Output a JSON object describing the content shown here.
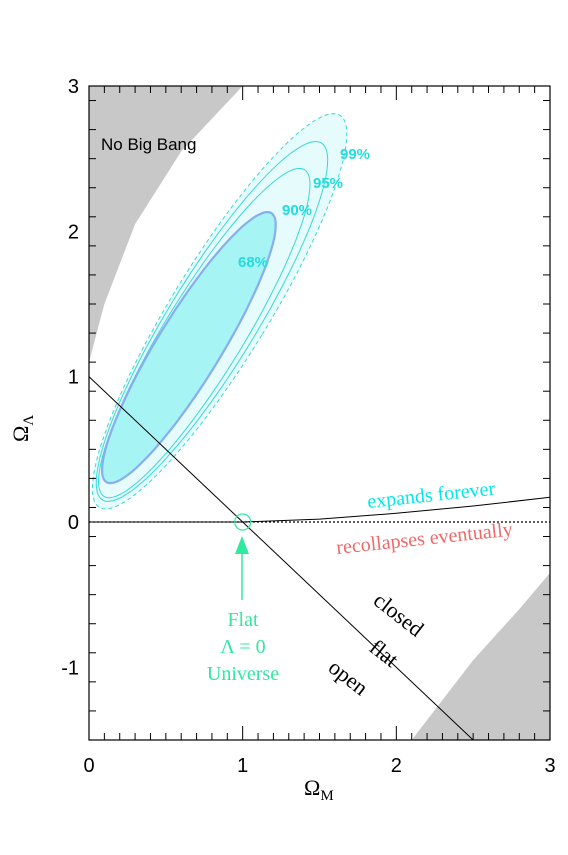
{
  "chart_data": {
    "type": "contour",
    "xlabel": {
      "main": "Ω",
      "sub": "M"
    },
    "ylabel": {
      "main": "Ω",
      "sub": "Λ"
    },
    "xlim": [
      0,
      3
    ],
    "ylim": [
      -1.5,
      3
    ],
    "xticks": [
      {
        "value": 0,
        "label": "0"
      },
      {
        "value": 1,
        "label": "1"
      },
      {
        "value": 2,
        "label": "2"
      },
      {
        "value": 3,
        "label": "3"
      }
    ],
    "yticks": [
      {
        "value": -1,
        "label": "-1"
      },
      {
        "value": 0,
        "label": "0"
      },
      {
        "value": 1,
        "label": "1"
      },
      {
        "value": 2,
        "label": "2"
      },
      {
        "value": 3,
        "label": "3"
      }
    ],
    "colors": {
      "contour_fill_68": "#a6f4f4",
      "contour_fill_outer": "#e6fbfb",
      "contour_line": "#38d8d8",
      "contour_68_edge": "#86aef0",
      "excluded_region": "#c8c8c8",
      "expands_forever": "#00e8e8",
      "recollapses": "#f06868",
      "flat_universe": "#30e8a0"
    },
    "contours": [
      {
        "level": "68%",
        "center": [
          0.65,
          1.2
        ],
        "semi_axes": [
          0.21,
          1.07
        ],
        "angle_deg": 30
      },
      {
        "level": "90%",
        "center": [
          0.75,
          1.3
        ],
        "semi_axes": [
          0.26,
          1.3
        ],
        "angle_deg": 30
      },
      {
        "level": "95%",
        "center": [
          0.8,
          1.38
        ],
        "semi_axes": [
          0.29,
          1.42
        ],
        "angle_deg": 30
      },
      {
        "level": "99%",
        "center": [
          0.85,
          1.45
        ],
        "semi_axes": [
          0.32,
          1.56
        ],
        "angle_deg": 30
      }
    ],
    "labels": {
      "no_big_bang": "No Big Bang",
      "contour_68": "68%",
      "contour_90": "90%",
      "contour_95": "95%",
      "contour_99": "99%",
      "expands_forever": "expands forever",
      "recollapses": "recollapses eventually",
      "closed": "closed",
      "flat": "flat",
      "open": "open",
      "flat_universe_line1": "Flat",
      "flat_universe_line2": "Λ = 0",
      "flat_universe_line3": "Universe"
    },
    "flat_line": [
      [
        0,
        1
      ],
      [
        3,
        -2
      ]
    ],
    "expansion_boundary": [
      [
        0,
        0
      ],
      [
        1,
        0
      ],
      [
        1.5,
        0.02
      ],
      [
        2,
        0.06
      ],
      [
        2.5,
        0.11
      ],
      [
        3,
        0.17
      ]
    ],
    "no_big_bang_region": [
      [
        0,
        1.1
      ],
      [
        0.1,
        1.5
      ],
      [
        0.3,
        2.05
      ],
      [
        0.6,
        2.55
      ],
      [
        1.0,
        3
      ]
    ],
    "lower_region": [
      [
        2.1,
        -1.5
      ],
      [
        2.5,
        -0.95
      ],
      [
        2.8,
        -0.6
      ],
      [
        3,
        -0.35
      ]
    ],
    "flat_marker": [
      1,
      0
    ]
  }
}
